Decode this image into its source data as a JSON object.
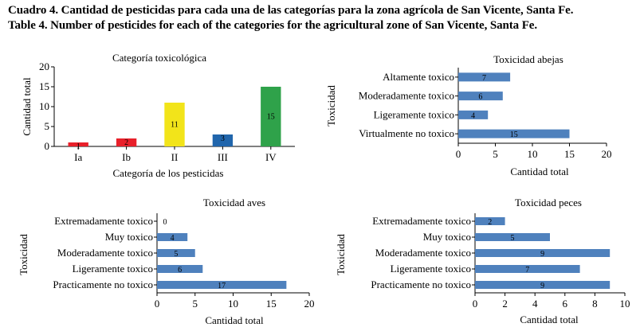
{
  "captions": {
    "es": "Cuadro 4. Cantidad de pesticidas para cada una de las categorías para la zona agrícola de San Vicente, Santa Fe.",
    "en": "Table 4. Number of pesticides for each of the categories for the agricultural zone of San Vicente, Santa Fe."
  },
  "chart_data": [
    {
      "id": "toxicologica",
      "type": "bar",
      "title": "Categoría toxicológica",
      "xlabel": "Categoría de los pesticidas",
      "ylabel": "Cantidad total",
      "categories": [
        "Ia",
        "Ib",
        "II",
        "III",
        "IV"
      ],
      "values": [
        1,
        2,
        11,
        3,
        15
      ],
      "colors": [
        "#e8202a",
        "#e8202a",
        "#f2e41a",
        "#2166ac",
        "#2fa24a"
      ],
      "ylim": [
        0,
        20
      ],
      "yticks": [
        0,
        5,
        10,
        15,
        20
      ],
      "grid": false
    },
    {
      "id": "abejas",
      "type": "barh",
      "title": "Toxicidad abejas",
      "xlabel": "Cantidad total",
      "ylabel": "Toxicidad",
      "categories": [
        "Altamente toxico",
        "Moderadamente toxico",
        "Ligeramente toxico",
        "Virtualmente no toxico"
      ],
      "values": [
        7,
        6,
        4,
        15
      ],
      "color": "#4f81bd",
      "xlim": [
        0,
        20
      ],
      "xticks": [
        0,
        5,
        10,
        15,
        20
      ],
      "grid": false
    },
    {
      "id": "aves",
      "type": "barh",
      "title": "Toxicidad aves",
      "xlabel": "Cantidad total",
      "ylabel": "Toxicidad",
      "categories": [
        "Extremadamente toxico",
        "Muy toxico",
        "Moderadamente toxico",
        "Ligeramente toxico",
        "Practicamente no toxico"
      ],
      "values": [
        0,
        4,
        5,
        6,
        17
      ],
      "color": "#4f81bd",
      "xlim": [
        0,
        20
      ],
      "xticks": [
        0,
        5,
        10,
        15,
        20
      ],
      "grid": false
    },
    {
      "id": "peces",
      "type": "barh",
      "title": "Toxicidad peces",
      "xlabel": "Cantidad total",
      "ylabel": "Toxicidad",
      "categories": [
        "Extremadamente toxico",
        "Muy toxico",
        "Moderadamente toxico",
        "Ligeramente toxico",
        "Practicamente no toxico"
      ],
      "values": [
        2,
        5,
        9,
        7,
        9
      ],
      "color": "#4f81bd",
      "xlim": [
        0,
        10
      ],
      "xticks": [
        0,
        2,
        4,
        6,
        8,
        10
      ],
      "grid": false
    }
  ]
}
